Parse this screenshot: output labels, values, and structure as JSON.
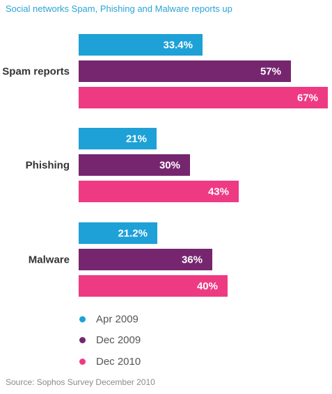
{
  "title": "Social networks Spam, Phishing and Malware reports up",
  "source": "Source: Sophos Survey December 2010",
  "colors": {
    "apr2009": "#1da1d7",
    "dec2009": "#76266f",
    "dec2010": "#ee3a83"
  },
  "chart_data": {
    "type": "bar",
    "orientation": "horizontal",
    "title": "Social networks Spam, Phishing and Malware reports up",
    "categories": [
      "Spam reports",
      "Phishing",
      "Malware"
    ],
    "series": [
      {
        "name": "Apr 2009",
        "values": [
          33.4,
          21,
          21.2
        ],
        "labels": [
          "33.4%",
          "21%",
          "21.2%"
        ],
        "color": "#1da1d7"
      },
      {
        "name": "Dec 2009",
        "values": [
          57,
          30,
          36
        ],
        "labels": [
          "57%",
          "30%",
          "36%"
        ],
        "color": "#76266f"
      },
      {
        "name": "Dec 2010",
        "values": [
          67,
          43,
          40
        ],
        "labels": [
          "67%",
          "43%",
          "40%"
        ],
        "color": "#ee3a83"
      }
    ],
    "xlim": [
      0,
      67
    ],
    "grid": false,
    "legend": "bottom-left",
    "source": "Source: Sophos Survey December 2010"
  }
}
